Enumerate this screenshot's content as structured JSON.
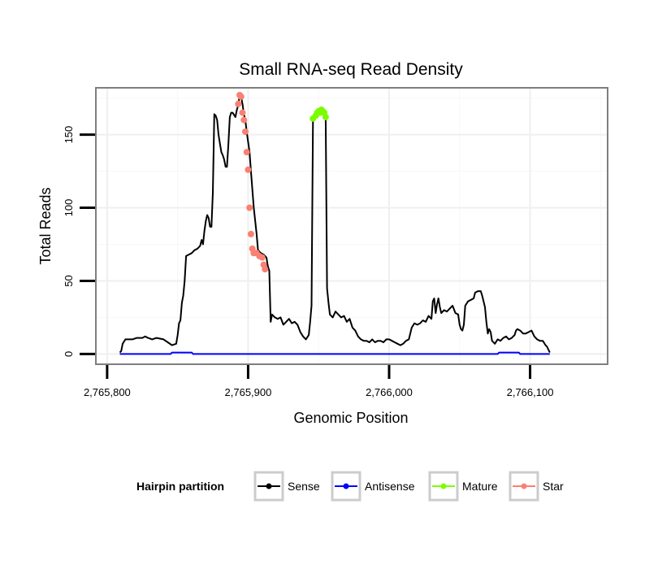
{
  "chart_data": {
    "type": "line",
    "title": "Small RNA-seq Read Density",
    "xlabel": "Genomic Position",
    "ylabel": "Total Reads",
    "xlim": [
      2765792,
      2766155
    ],
    "ylim": [
      -7,
      182
    ],
    "x_ticks": [
      2765800,
      2765900,
      2766000,
      2766100
    ],
    "x_tick_labels": [
      "2,765,800",
      "2,765,900",
      "2,766,000",
      "2,766,100"
    ],
    "y_ticks": [
      0,
      50,
      100,
      150
    ],
    "y_tick_labels": [
      "0",
      "50",
      "100",
      "150"
    ],
    "grid": true,
    "legend_position": "bottom",
    "legend_title": "Hairpin partition",
    "series": [
      {
        "name": "Sense",
        "color": "#000000",
        "points": [
          [
            2765809,
            1
          ],
          [
            2765810,
            2
          ],
          [
            2765811,
            7
          ],
          [
            2765813,
            10
          ],
          [
            2765818,
            10
          ],
          [
            2765821,
            11
          ],
          [
            2765825,
            11
          ],
          [
            2765827,
            12
          ],
          [
            2765829,
            11
          ],
          [
            2765832,
            10
          ],
          [
            2765835,
            11
          ],
          [
            2765840,
            10
          ],
          [
            2765843,
            8
          ],
          [
            2765846,
            6
          ],
          [
            2765849,
            7
          ],
          [
            2765850,
            13
          ],
          [
            2765851,
            21
          ],
          [
            2765852,
            23
          ],
          [
            2765853,
            35
          ],
          [
            2765854,
            40
          ],
          [
            2765855,
            50
          ],
          [
            2765856,
            67
          ],
          [
            2765858,
            68
          ],
          [
            2765860,
            69
          ],
          [
            2765862,
            71
          ],
          [
            2765864,
            72
          ],
          [
            2765866,
            74
          ],
          [
            2765867,
            78
          ],
          [
            2765868,
            75
          ],
          [
            2765869,
            84
          ],
          [
            2765870,
            91
          ],
          [
            2765871,
            95
          ],
          [
            2765872,
            93
          ],
          [
            2765873,
            87
          ],
          [
            2765874,
            87
          ],
          [
            2765875,
            110
          ],
          [
            2765876,
            164
          ],
          [
            2765877,
            163
          ],
          [
            2765878,
            160
          ],
          [
            2765879,
            150
          ],
          [
            2765880,
            144
          ],
          [
            2765881,
            138
          ],
          [
            2765882,
            136
          ],
          [
            2765883,
            133
          ],
          [
            2765884,
            128
          ],
          [
            2765885,
            128
          ],
          [
            2765886,
            143
          ],
          [
            2765887,
            162
          ],
          [
            2765888,
            165
          ],
          [
            2765889,
            165
          ],
          [
            2765891,
            162
          ],
          [
            2765892,
            167
          ],
          [
            2765893,
            170
          ],
          [
            2765894,
            177
          ],
          [
            2765895,
            176
          ],
          [
            2765896,
            171
          ],
          [
            2765897,
            164
          ],
          [
            2765898,
            160
          ],
          [
            2765899,
            152
          ],
          [
            2765901,
            138
          ],
          [
            2765902,
            125
          ],
          [
            2765904,
            100
          ],
          [
            2765906,
            82
          ],
          [
            2765907,
            71
          ],
          [
            2765909,
            69
          ],
          [
            2765911,
            68
          ],
          [
            2765913,
            66
          ],
          [
            2765914,
            60
          ],
          [
            2765915,
            57
          ],
          [
            2765916,
            22
          ],
          [
            2765917,
            27
          ],
          [
            2765919,
            25
          ],
          [
            2765921,
            24
          ],
          [
            2765923,
            25
          ],
          [
            2765925,
            20
          ],
          [
            2765927,
            22
          ],
          [
            2765929,
            24
          ],
          [
            2765931,
            21
          ],
          [
            2765933,
            22
          ],
          [
            2765935,
            20
          ],
          [
            2765937,
            15
          ],
          [
            2765939,
            12
          ],
          [
            2765941,
            10
          ],
          [
            2765943,
            13
          ],
          [
            2765944,
            22
          ],
          [
            2765945,
            33
          ],
          [
            2765946,
            161
          ],
          [
            2765948,
            162
          ],
          [
            2765950,
            164
          ],
          [
            2765952,
            166
          ],
          [
            2765954,
            165
          ],
          [
            2765955,
            163
          ],
          [
            2765956,
            45
          ],
          [
            2765957,
            35
          ],
          [
            2765958,
            27
          ],
          [
            2765960,
            25
          ],
          [
            2765962,
            29
          ],
          [
            2765964,
            27
          ],
          [
            2765966,
            25
          ],
          [
            2765968,
            26
          ],
          [
            2765970,
            22
          ],
          [
            2765972,
            24
          ],
          [
            2765974,
            18
          ],
          [
            2765976,
            16
          ],
          [
            2765978,
            12
          ],
          [
            2765980,
            10
          ],
          [
            2765982,
            9
          ],
          [
            2765984,
            9
          ],
          [
            2765986,
            8
          ],
          [
            2765988,
            10
          ],
          [
            2765990,
            8
          ],
          [
            2765992,
            9
          ],
          [
            2765994,
            9
          ],
          [
            2765996,
            8
          ],
          [
            2765998,
            10
          ],
          [
            2766000,
            10
          ],
          [
            2766002,
            9
          ],
          [
            2766004,
            8
          ],
          [
            2766006,
            7
          ],
          [
            2766008,
            6
          ],
          [
            2766010,
            7
          ],
          [
            2766012,
            9
          ],
          [
            2766014,
            10
          ],
          [
            2766016,
            18
          ],
          [
            2766018,
            21
          ],
          [
            2766020,
            20
          ],
          [
            2766022,
            21
          ],
          [
            2766024,
            23
          ],
          [
            2766026,
            22
          ],
          [
            2766028,
            26
          ],
          [
            2766030,
            24
          ],
          [
            2766031,
            36
          ],
          [
            2766032,
            38
          ],
          [
            2766033,
            28
          ],
          [
            2766034,
            34
          ],
          [
            2766035,
            38
          ],
          [
            2766036,
            32
          ],
          [
            2766037,
            28
          ],
          [
            2766039,
            30
          ],
          [
            2766041,
            29
          ],
          [
            2766043,
            31
          ],
          [
            2766045,
            33
          ],
          [
            2766047,
            28
          ],
          [
            2766049,
            27
          ],
          [
            2766050,
            20
          ],
          [
            2766051,
            17
          ],
          [
            2766052,
            16
          ],
          [
            2766053,
            20
          ],
          [
            2766054,
            33
          ],
          [
            2766056,
            36
          ],
          [
            2766058,
            37
          ],
          [
            2766060,
            38
          ],
          [
            2766061,
            42
          ],
          [
            2766063,
            43
          ],
          [
            2766065,
            43
          ],
          [
            2766066,
            40
          ],
          [
            2766068,
            32
          ],
          [
            2766069,
            22
          ],
          [
            2766070,
            14
          ],
          [
            2766071,
            17
          ],
          [
            2766072,
            15
          ],
          [
            2766073,
            9
          ],
          [
            2766075,
            7
          ],
          [
            2766077,
            10
          ],
          [
            2766079,
            9
          ],
          [
            2766081,
            11
          ],
          [
            2766083,
            12
          ],
          [
            2766085,
            10
          ],
          [
            2766087,
            11
          ],
          [
            2766089,
            13
          ],
          [
            2766090,
            16
          ],
          [
            2766091,
            17
          ],
          [
            2766093,
            16
          ],
          [
            2766095,
            14
          ],
          [
            2766097,
            14
          ],
          [
            2766099,
            15
          ],
          [
            2766101,
            16
          ],
          [
            2766103,
            12
          ],
          [
            2766105,
            10
          ],
          [
            2766107,
            9
          ],
          [
            2766109,
            9
          ],
          [
            2766111,
            6
          ],
          [
            2766112,
            5
          ],
          [
            2766113,
            3
          ],
          [
            2766114,
            1
          ]
        ]
      },
      {
        "name": "Antisense",
        "color": "#0000ff",
        "points": [
          [
            2765809,
            0
          ],
          [
            2765845,
            0
          ],
          [
            2765846,
            1
          ],
          [
            2765860,
            1
          ],
          [
            2765861,
            0
          ],
          [
            2766077,
            0
          ],
          [
            2766078,
            1
          ],
          [
            2766092,
            1
          ],
          [
            2766093,
            0
          ],
          [
            2766114,
            0
          ]
        ]
      },
      {
        "name": "Mature",
        "color": "#7cfc00",
        "points": [
          [
            2765946,
            161
          ],
          [
            2765948,
            163
          ],
          [
            2765949,
            165
          ],
          [
            2765950,
            166
          ],
          [
            2765951,
            165
          ],
          [
            2765952,
            167
          ],
          [
            2765953,
            166
          ],
          [
            2765954,
            165
          ],
          [
            2765955,
            162
          ]
        ]
      },
      {
        "name": "Star",
        "color": "#fa8072",
        "points": [
          [
            2765893,
            171
          ],
          [
            2765894,
            177
          ],
          [
            2765895,
            176
          ],
          [
            2765896,
            165
          ],
          [
            2765897,
            160
          ],
          [
            2765898,
            152
          ],
          [
            2765899,
            138
          ],
          [
            2765900,
            126
          ],
          [
            2765901,
            100
          ],
          [
            2765902,
            82
          ],
          [
            2765903,
            72
          ],
          [
            2765904,
            69
          ],
          [
            2765906,
            69
          ],
          [
            2765908,
            67
          ],
          [
            2765910,
            66
          ],
          [
            2765911,
            61
          ],
          [
            2765912,
            58
          ]
        ]
      }
    ]
  }
}
